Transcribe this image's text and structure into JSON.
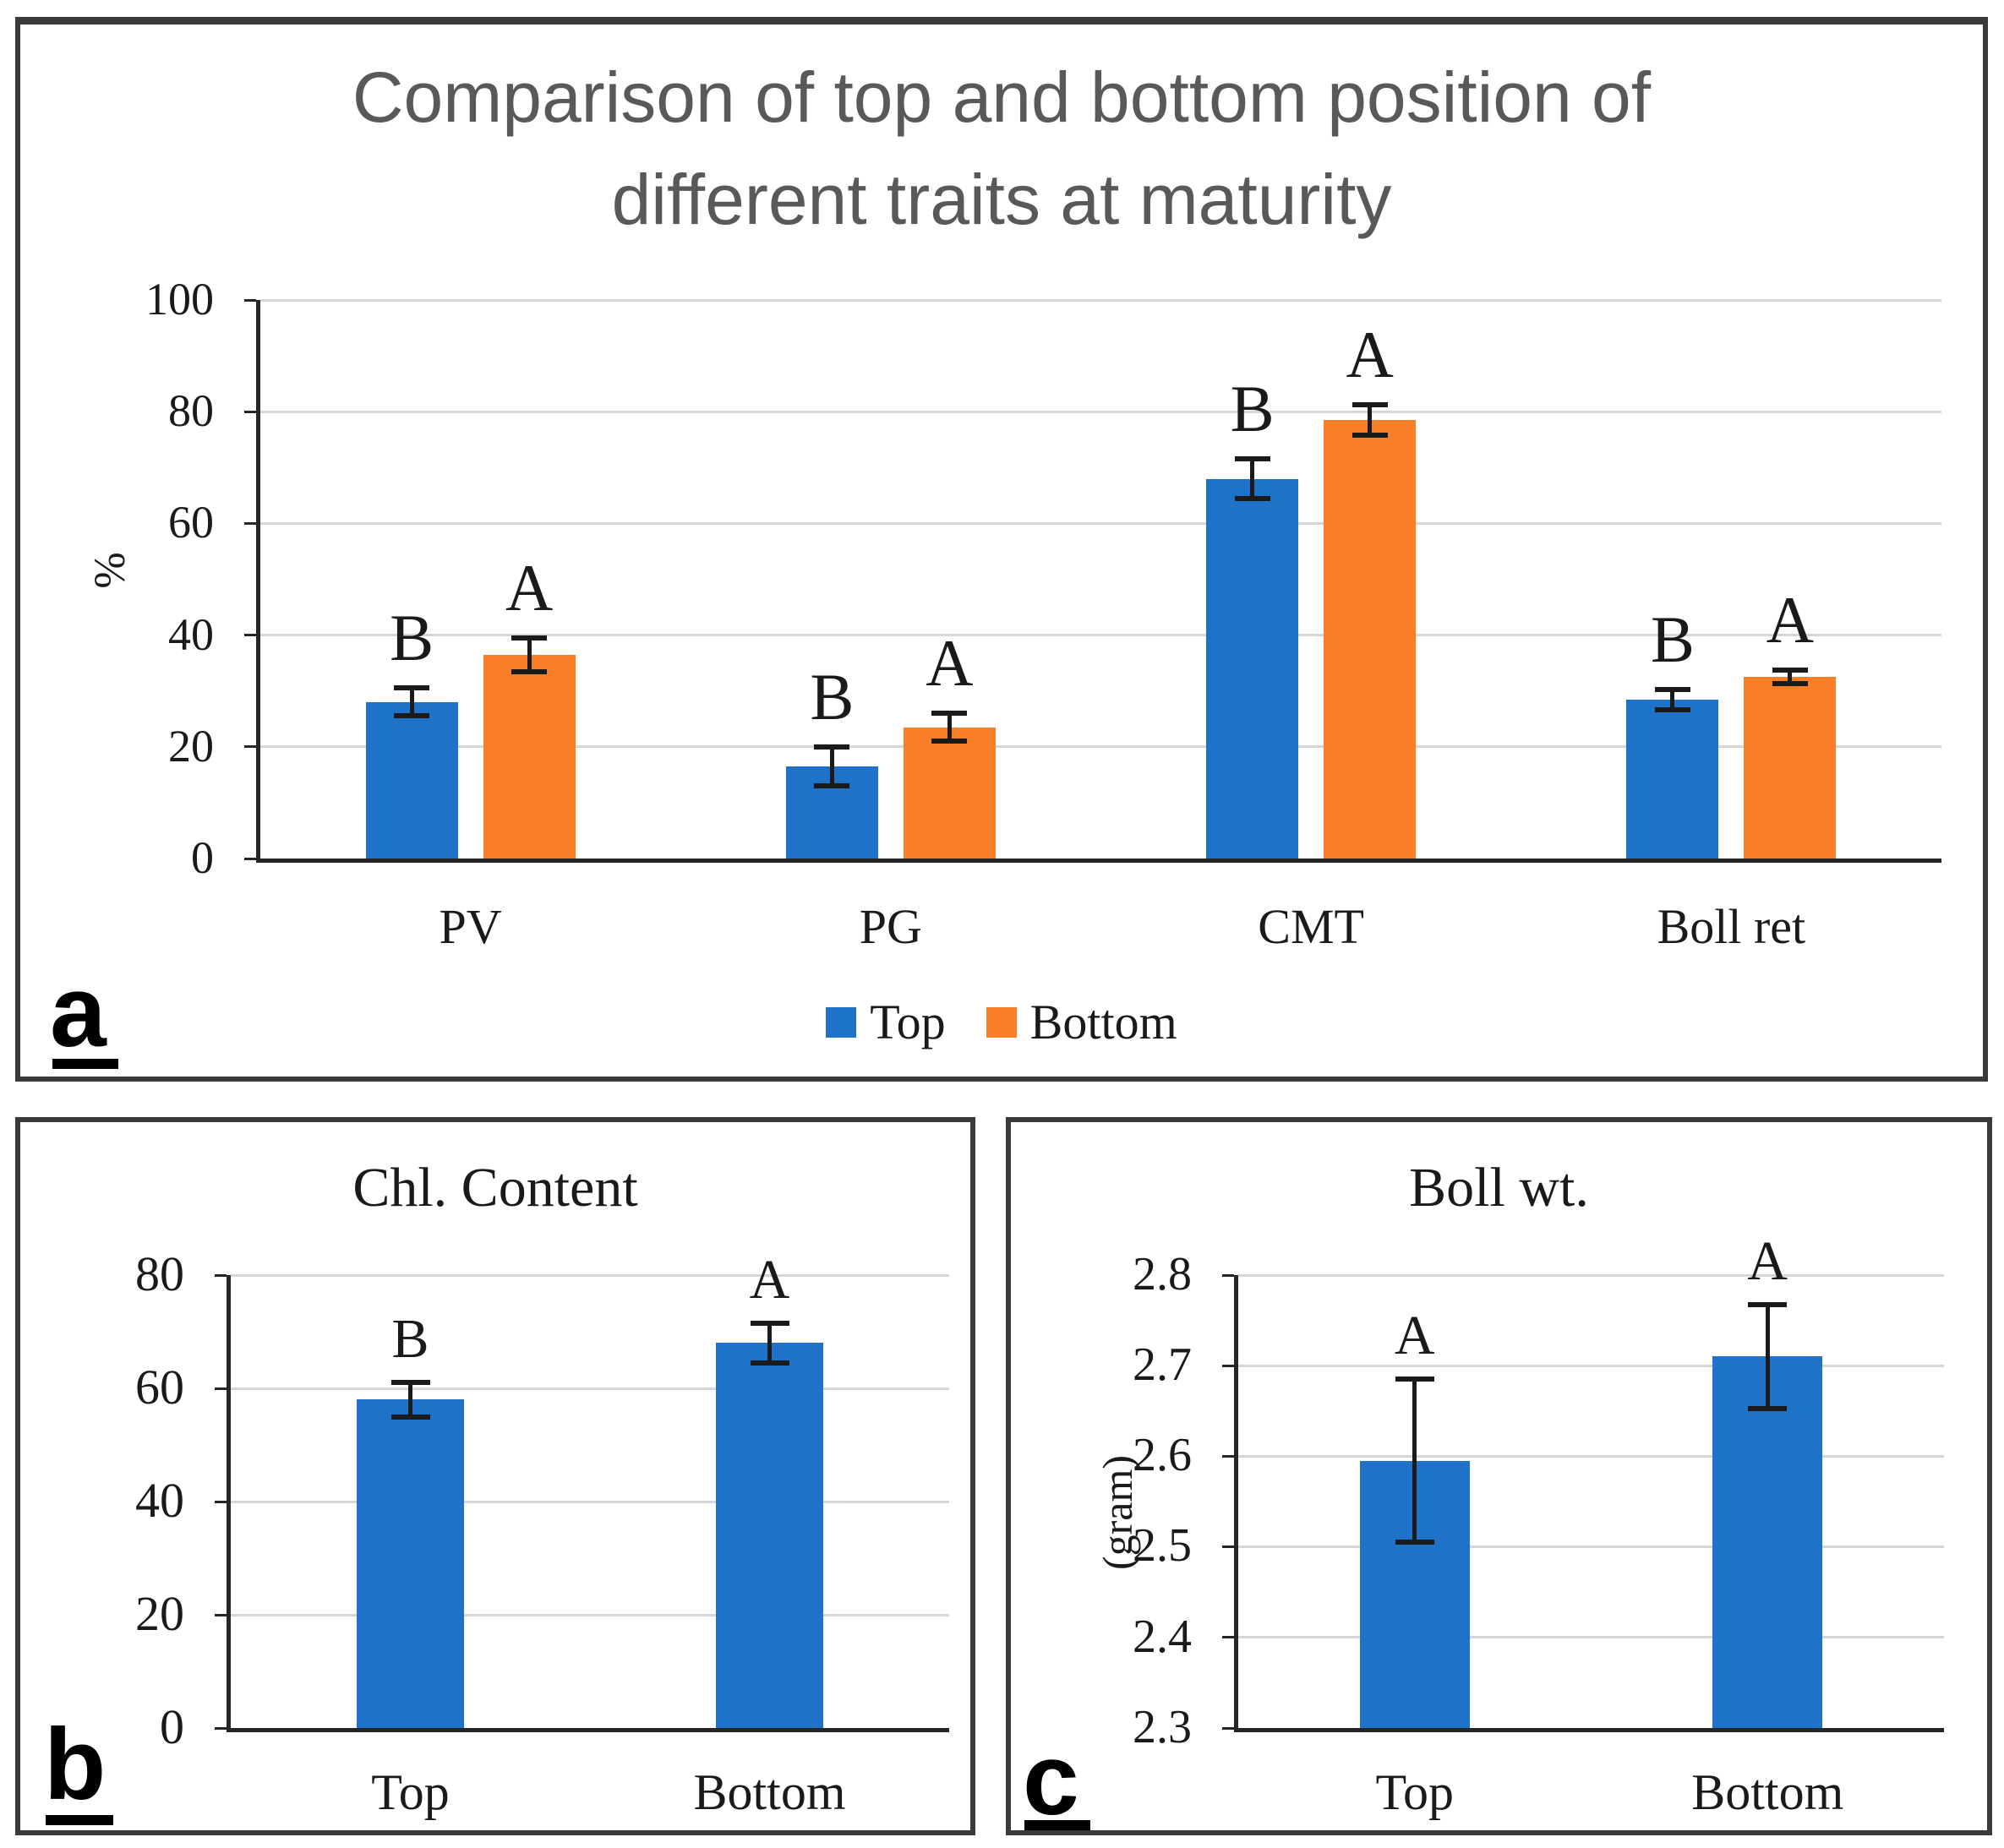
{
  "colors": {
    "top_series": "#1E73C9",
    "bottom_series": "#F87E28",
    "axis": "#262626",
    "gridline": "#D6D6D6",
    "panel_border": "#3A3A3A",
    "title_gray": "#595959",
    "text": "#1A1A1A"
  },
  "panels": {
    "a": {
      "letter": "a",
      "title_line1": "Comparison of top and bottom position of",
      "title_line2": "different traits at maturity",
      "ylabel": "%"
    },
    "b": {
      "letter": "b",
      "title": "Chl. Content"
    },
    "c": {
      "letter": "c",
      "title": "Boll wt.",
      "ylabel": "(gram)"
    }
  },
  "legend": {
    "items": [
      {
        "label": "Top",
        "color": "#1E73C9"
      },
      {
        "label": "Bottom",
        "color": "#F87E28"
      }
    ]
  },
  "chart_data": [
    {
      "id": "a",
      "type": "bar",
      "title": "Comparison of top and bottom position of different traits at maturity",
      "ylabel": "%",
      "ylim": [
        0,
        100
      ],
      "yticks": [
        0,
        20,
        40,
        60,
        80,
        100
      ],
      "ytick_decimals": 0,
      "grid": true,
      "legend_position": "bottom",
      "categories": [
        "PV",
        "PG",
        "CMT",
        "Boll ret"
      ],
      "series": [
        {
          "name": "Top",
          "color": "#1E73C9",
          "values": [
            28,
            16.5,
            68,
            28.5
          ],
          "errors": [
            2.5,
            3.5,
            3.5,
            1.8
          ],
          "sig_labels": [
            "B",
            "B",
            "B",
            "B"
          ]
        },
        {
          "name": "Bottom",
          "color": "#F87E28",
          "values": [
            36.5,
            23.5,
            78.5,
            32.5
          ],
          "errors": [
            3,
            2.5,
            2.7,
            1.2
          ],
          "sig_labels": [
            "A",
            "A",
            "A",
            "A"
          ]
        }
      ]
    },
    {
      "id": "b",
      "type": "bar",
      "title": "Chl. Content",
      "ylabel": "",
      "ylim": [
        0,
        80
      ],
      "yticks": [
        0,
        20,
        40,
        60,
        80
      ],
      "ytick_decimals": 0,
      "grid": true,
      "categories": [
        "Top",
        "Bottom"
      ],
      "series": [
        {
          "name": "Chl. Content",
          "color": "#1E73C9",
          "values": [
            58,
            68
          ],
          "errors": [
            3,
            3.5
          ],
          "sig_labels": [
            "B",
            "A"
          ]
        }
      ]
    },
    {
      "id": "c",
      "type": "bar",
      "title": "Boll wt.",
      "ylabel": "(gram)",
      "ylim": [
        2.3,
        2.8
      ],
      "yticks": [
        2.3,
        2.4,
        2.5,
        2.6,
        2.7,
        2.8
      ],
      "ytick_decimals": 1,
      "grid": true,
      "categories": [
        "Top",
        "Bottom"
      ],
      "series": [
        {
          "name": "Boll wt.",
          "color": "#1E73C9",
          "values": [
            2.595,
            2.71
          ],
          "errors": [
            0.09,
            0.057
          ],
          "sig_labels": [
            "A",
            "A"
          ]
        }
      ]
    }
  ]
}
